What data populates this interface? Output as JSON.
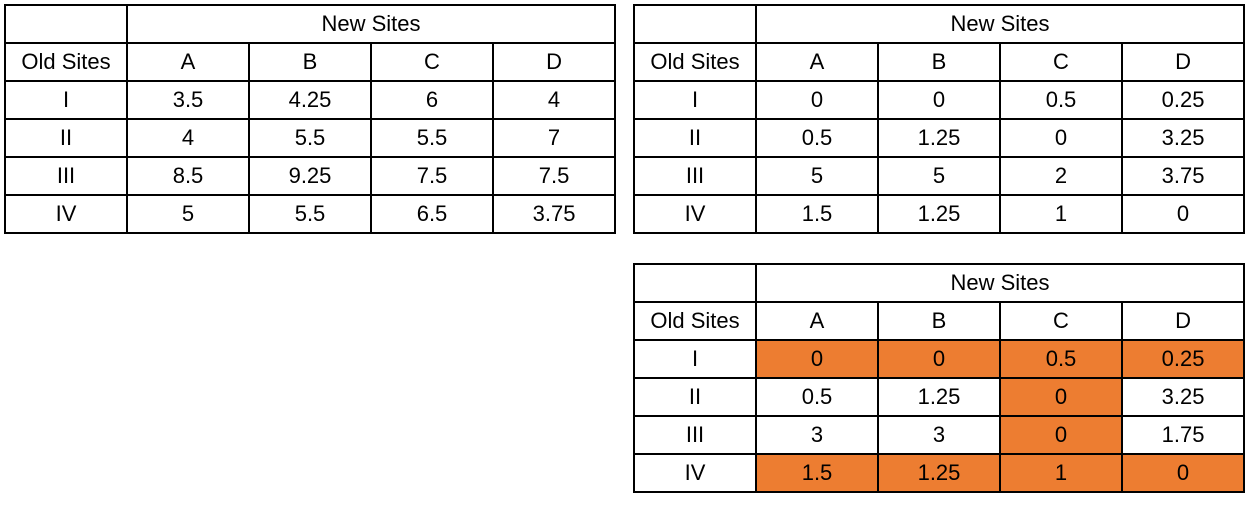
{
  "tables": [
    {
      "group_header": "New Sites",
      "row_header": "Old Sites",
      "columns": [
        "A",
        "B",
        "C",
        "D"
      ],
      "rows": [
        {
          "label": "I",
          "values": [
            "3.5",
            "4.25",
            "6",
            "4"
          ]
        },
        {
          "label": "II",
          "values": [
            "4",
            "5.5",
            "5.5",
            "7"
          ]
        },
        {
          "label": "III",
          "values": [
            "8.5",
            "9.25",
            "7.5",
            "7.5"
          ]
        },
        {
          "label": "IV",
          "values": [
            "5",
            "5.5",
            "6.5",
            "3.75"
          ]
        }
      ]
    },
    {
      "group_header": "New Sites",
      "row_header": "Old Sites",
      "columns": [
        "A",
        "B",
        "C",
        "D"
      ],
      "rows": [
        {
          "label": "I",
          "values": [
            "0",
            "0",
            "0.5",
            "0.25"
          ]
        },
        {
          "label": "II",
          "values": [
            "0.5",
            "1.25",
            "0",
            "3.25"
          ]
        },
        {
          "label": "III",
          "values": [
            "5",
            "5",
            "2",
            "3.75"
          ]
        },
        {
          "label": "IV",
          "values": [
            "1.5",
            "1.25",
            "1",
            "0"
          ]
        }
      ]
    },
    {
      "group_header": "New Sites",
      "row_header": "Old Sites",
      "columns": [
        "A",
        "B",
        "C",
        "D"
      ],
      "rows": [
        {
          "label": "I",
          "values": [
            "0",
            "0",
            "0.5",
            "0.25"
          ]
        },
        {
          "label": "II",
          "values": [
            "0.5",
            "1.25",
            "0",
            "3.25"
          ]
        },
        {
          "label": "III",
          "values": [
            "3",
            "3",
            "0",
            "1.75"
          ]
        },
        {
          "label": "IV",
          "values": [
            "1.5",
            "1.25",
            "1",
            "0"
          ]
        }
      ],
      "highlight_color": "#ED7D31",
      "highlighted_rows": [
        "I",
        "IV"
      ],
      "highlighted_columns": [
        "C"
      ]
    }
  ]
}
